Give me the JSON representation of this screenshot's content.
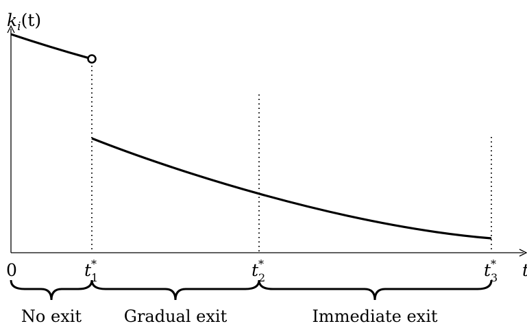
{
  "figure": {
    "y_label": {
      "base": "k",
      "sub": "i",
      "rest": "(t)"
    },
    "x_label": "t",
    "origin_label": "0",
    "ticks": [
      {
        "base": "t",
        "sup": "*",
        "sub": "1"
      },
      {
        "base": "t",
        "sup": "*",
        "sub": "2"
      },
      {
        "base": "t",
        "sup": "*",
        "sub": "3"
      }
    ],
    "regions": [
      "No exit",
      "Gradual exit",
      "Immediate exit"
    ]
  }
}
